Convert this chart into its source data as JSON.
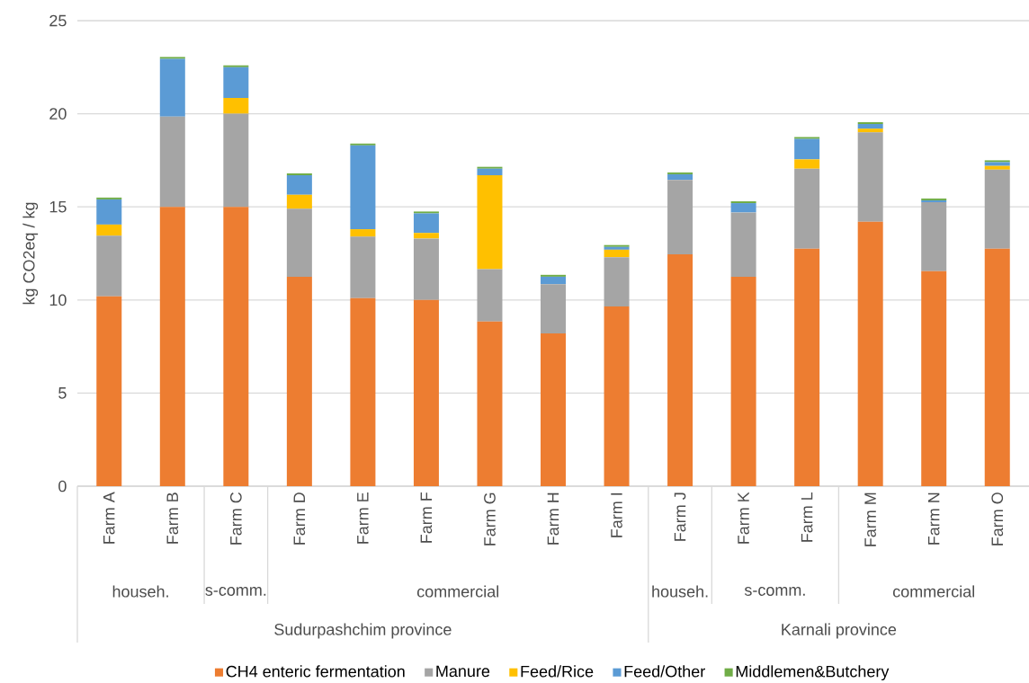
{
  "chart_data": {
    "type": "bar",
    "stacked": true,
    "ylabel": "kg CO2eq / kg",
    "categories": [
      "Farm A",
      "Farm B",
      "Farm C",
      "Farm D",
      "Farm E",
      "Farm F",
      "Farm G",
      "Farm H",
      "Farm I",
      "Farm J",
      "Farm K",
      "Farm L",
      "Farm M",
      "Farm N",
      "Farm O"
    ],
    "series": [
      {
        "name": "CH4 enteric fermentation",
        "color": "#ed7d31",
        "values": [
          10.2,
          15,
          15,
          11.25,
          10.1,
          10,
          8.85,
          8.2,
          9.65,
          12.45,
          11.25,
          12.75,
          14.2,
          11.55,
          12.75
        ]
      },
      {
        "name": "Manure",
        "color": "#a5a5a5",
        "values": [
          3.25,
          4.85,
          5,
          3.65,
          3.3,
          3.3,
          2.8,
          2.65,
          2.65,
          4,
          3.45,
          4.3,
          4.8,
          3.7,
          4.25
        ]
      },
      {
        "name": "Feed/Rice",
        "color": "#ffc000",
        "values": [
          0.6,
          0,
          0.85,
          0.75,
          0.4,
          0.3,
          5.05,
          0,
          0.4,
          0,
          0,
          0.5,
          0.2,
          0,
          0.2
        ]
      },
      {
        "name": "Feed/Other",
        "color": "#5b9bd5",
        "values": [
          1.35,
          3.1,
          1.65,
          1.05,
          4.5,
          1.05,
          0.35,
          0.4,
          0.15,
          0.3,
          0.5,
          1.1,
          0.25,
          0.1,
          0.2
        ]
      },
      {
        "name": "Middlemen&Butchery",
        "color": "#70ad47",
        "values": [
          0.1,
          0.1,
          0.1,
          0.1,
          0.1,
          0.1,
          0.1,
          0.1,
          0.1,
          0.1,
          0.1,
          0.1,
          0.1,
          0.1,
          0.1
        ]
      }
    ],
    "annotations": [
      "househ.",
      "s-comm.",
      "commercial",
      "househ.",
      "s-comm.",
      "commercial",
      "Sudurpashchim province",
      "Karnali province"
    ],
    "ylim": [
      0,
      25
    ],
    "yticks": [
      0,
      5,
      10,
      15,
      20,
      25
    ],
    "grid": "y",
    "legend": "bottom"
  }
}
